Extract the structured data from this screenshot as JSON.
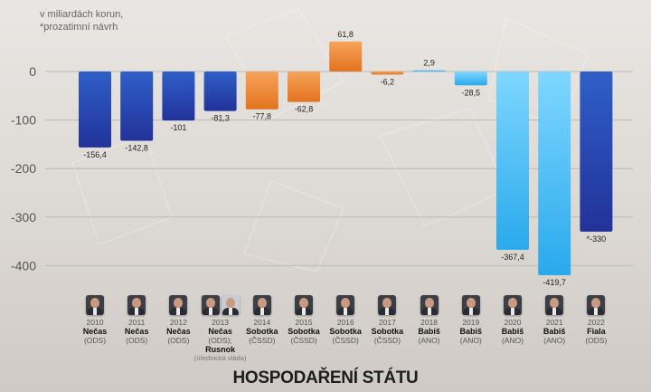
{
  "unit_note": [
    "v miliardách korun,",
    "*prozatimní návrh"
  ],
  "footer_title": "HOSPODAŘENÍ STÁTU",
  "colors": {
    "blue_top": "#2f5fc8",
    "blue_bottom": "#22329a",
    "orange_top": "#f7a35b",
    "orange_bottom": "#e3731f",
    "cyan_top": "#7fd7ff",
    "cyan_bottom": "#29a9ec"
  },
  "chart_data": {
    "type": "bar",
    "ylim": [
      -450,
      80
    ],
    "yticks": [
      0,
      -100,
      -200,
      -300,
      -400
    ],
    "ytick_labels": [
      "0",
      "-100",
      "-200",
      "-300",
      "-400"
    ],
    "grid": true,
    "categories": [
      "2010",
      "2011",
      "2012",
      "2013",
      "2014",
      "2015",
      "2016",
      "2017",
      "2018",
      "2019",
      "2020",
      "2021",
      "2022"
    ],
    "values": [
      -156.4,
      -142.8,
      -101,
      -81.3,
      -77.8,
      -62.8,
      61.8,
      -6.2,
      2.9,
      -28.5,
      -367.4,
      -419.7,
      -330
    ],
    "value_labels": [
      "-156,4",
      "-142,8",
      "-101",
      "-81,3",
      "-77,8",
      "-62,8",
      "61,8",
      "-6,2",
      "2,9",
      "-28,5",
      "-367,4",
      "-419,7",
      "*-330"
    ],
    "bar_colors": [
      "blue",
      "blue",
      "blue",
      "blue",
      "orange",
      "orange",
      "orange",
      "orange",
      "cyan",
      "cyan",
      "cyan",
      "cyan",
      "blue"
    ]
  },
  "prime_ministers": [
    {
      "year": "2010",
      "name": "Nečas",
      "party": "(ODS)",
      "avatars": 1
    },
    {
      "year": "2011",
      "name": "Nečas",
      "party": "(ODS)",
      "avatars": 1
    },
    {
      "year": "2012",
      "name": "Nečas",
      "party": "(ODS)",
      "avatars": 1
    },
    {
      "year": "2013",
      "name": "Nečas",
      "party": "(ODS);",
      "name2": "Rusnok",
      "note": "(úřednická vláda)",
      "avatars": 2
    },
    {
      "year": "2014",
      "name": "Sobotka",
      "party": "(ČSSD)",
      "avatars": 1
    },
    {
      "year": "2015",
      "name": "Sobotka",
      "party": "(ČSSD)",
      "avatars": 1
    },
    {
      "year": "2016",
      "name": "Sobotka",
      "party": "(ČSSD)",
      "avatars": 1
    },
    {
      "year": "2017",
      "name": "Sobotka",
      "party": "(ČSSD)",
      "avatars": 1
    },
    {
      "year": "2018",
      "name": "Babiš",
      "party": "(ANO)",
      "avatars": 1
    },
    {
      "year": "2019",
      "name": "Babiš",
      "party": "(ANO)",
      "avatars": 1
    },
    {
      "year": "2020",
      "name": "Babiš",
      "party": "(ANO)",
      "avatars": 1
    },
    {
      "year": "2021",
      "name": "Babiš",
      "party": "(ANO)",
      "avatars": 1
    },
    {
      "year": "2022",
      "name": "Fiala",
      "party": "(ODS)",
      "avatars": 1
    }
  ]
}
